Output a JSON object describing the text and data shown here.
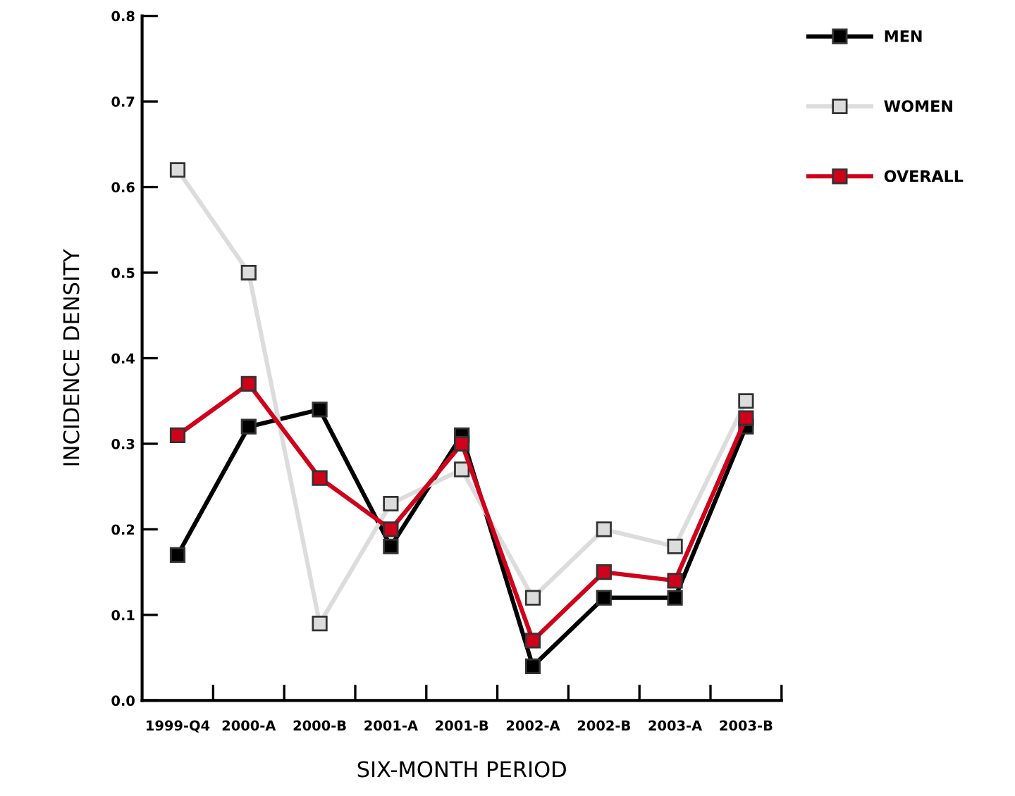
{
  "chart_data": {
    "type": "line",
    "xlabel": "SIX-MONTH PERIOD",
    "ylabel": "INCIDENCE DENSITY",
    "categories": [
      "1999-Q4",
      "2000-A",
      "2000-B",
      "2001-A",
      "2001-B",
      "2002-A",
      "2002-B",
      "2003-A",
      "2003-B"
    ],
    "series": [
      {
        "name": "MEN",
        "color": "#000000",
        "values": [
          0.17,
          0.32,
          0.34,
          0.18,
          0.31,
          0.04,
          0.12,
          0.12,
          0.32
        ]
      },
      {
        "name": "WOMEN",
        "color": "#dcdcdc",
        "values": [
          0.62,
          0.5,
          0.09,
          0.23,
          0.27,
          0.12,
          0.2,
          0.18,
          0.35
        ]
      },
      {
        "name": "OVERALL",
        "color": "#d0021b",
        "values": [
          0.31,
          0.37,
          0.26,
          0.2,
          0.3,
          0.07,
          0.15,
          0.14,
          0.33
        ]
      }
    ],
    "ylim": [
      0,
      0.8
    ],
    "yticks": [
      {
        "value": 0,
        "label": "0.0"
      },
      0.1,
      0.2,
      0.3,
      0.4,
      0.5,
      0.6,
      0.7,
      0.8
    ],
    "marker": "square",
    "line_style": "solid",
    "grid": false,
    "legend": "top right"
  }
}
